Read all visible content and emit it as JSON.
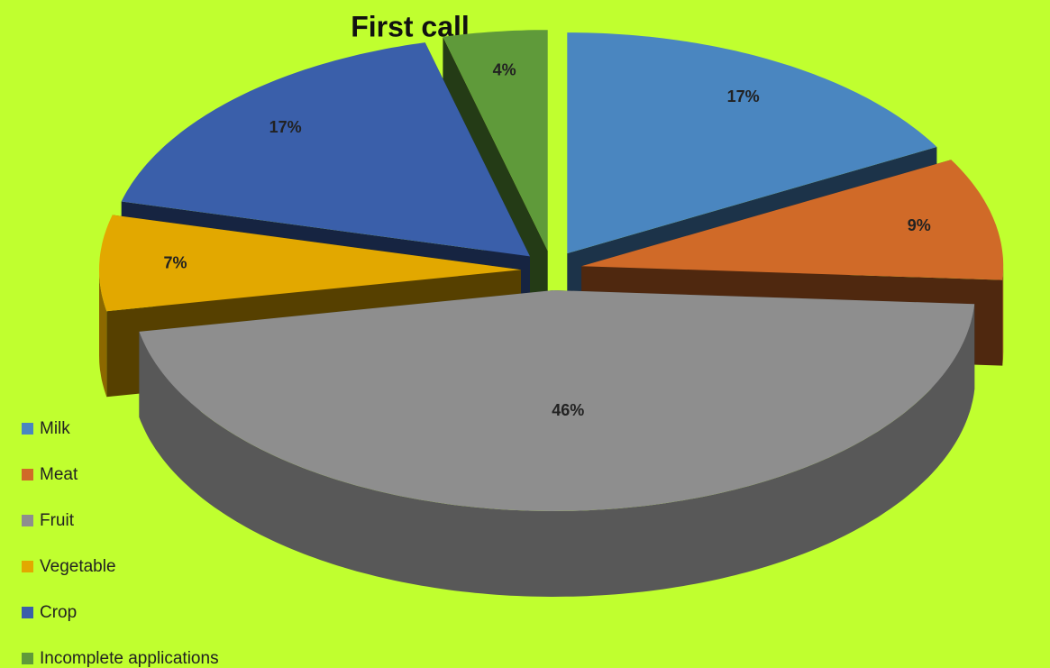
{
  "chart_data": {
    "type": "pie",
    "title": "First call",
    "categories": [
      "Milk",
      "Meat",
      "Fruit",
      "Vegetable",
      "Crop",
      "Incomplete applications"
    ],
    "values": [
      17,
      9,
      46,
      7,
      17,
      4
    ],
    "value_labels": [
      "17%",
      "9%",
      "46%",
      "7%",
      "17%",
      "4%"
    ],
    "colors": [
      "#4a86c0",
      "#d06a28",
      "#8e8e8e",
      "#e2a800",
      "#3a5faa",
      "#5f9a3a"
    ],
    "legend": "left"
  }
}
